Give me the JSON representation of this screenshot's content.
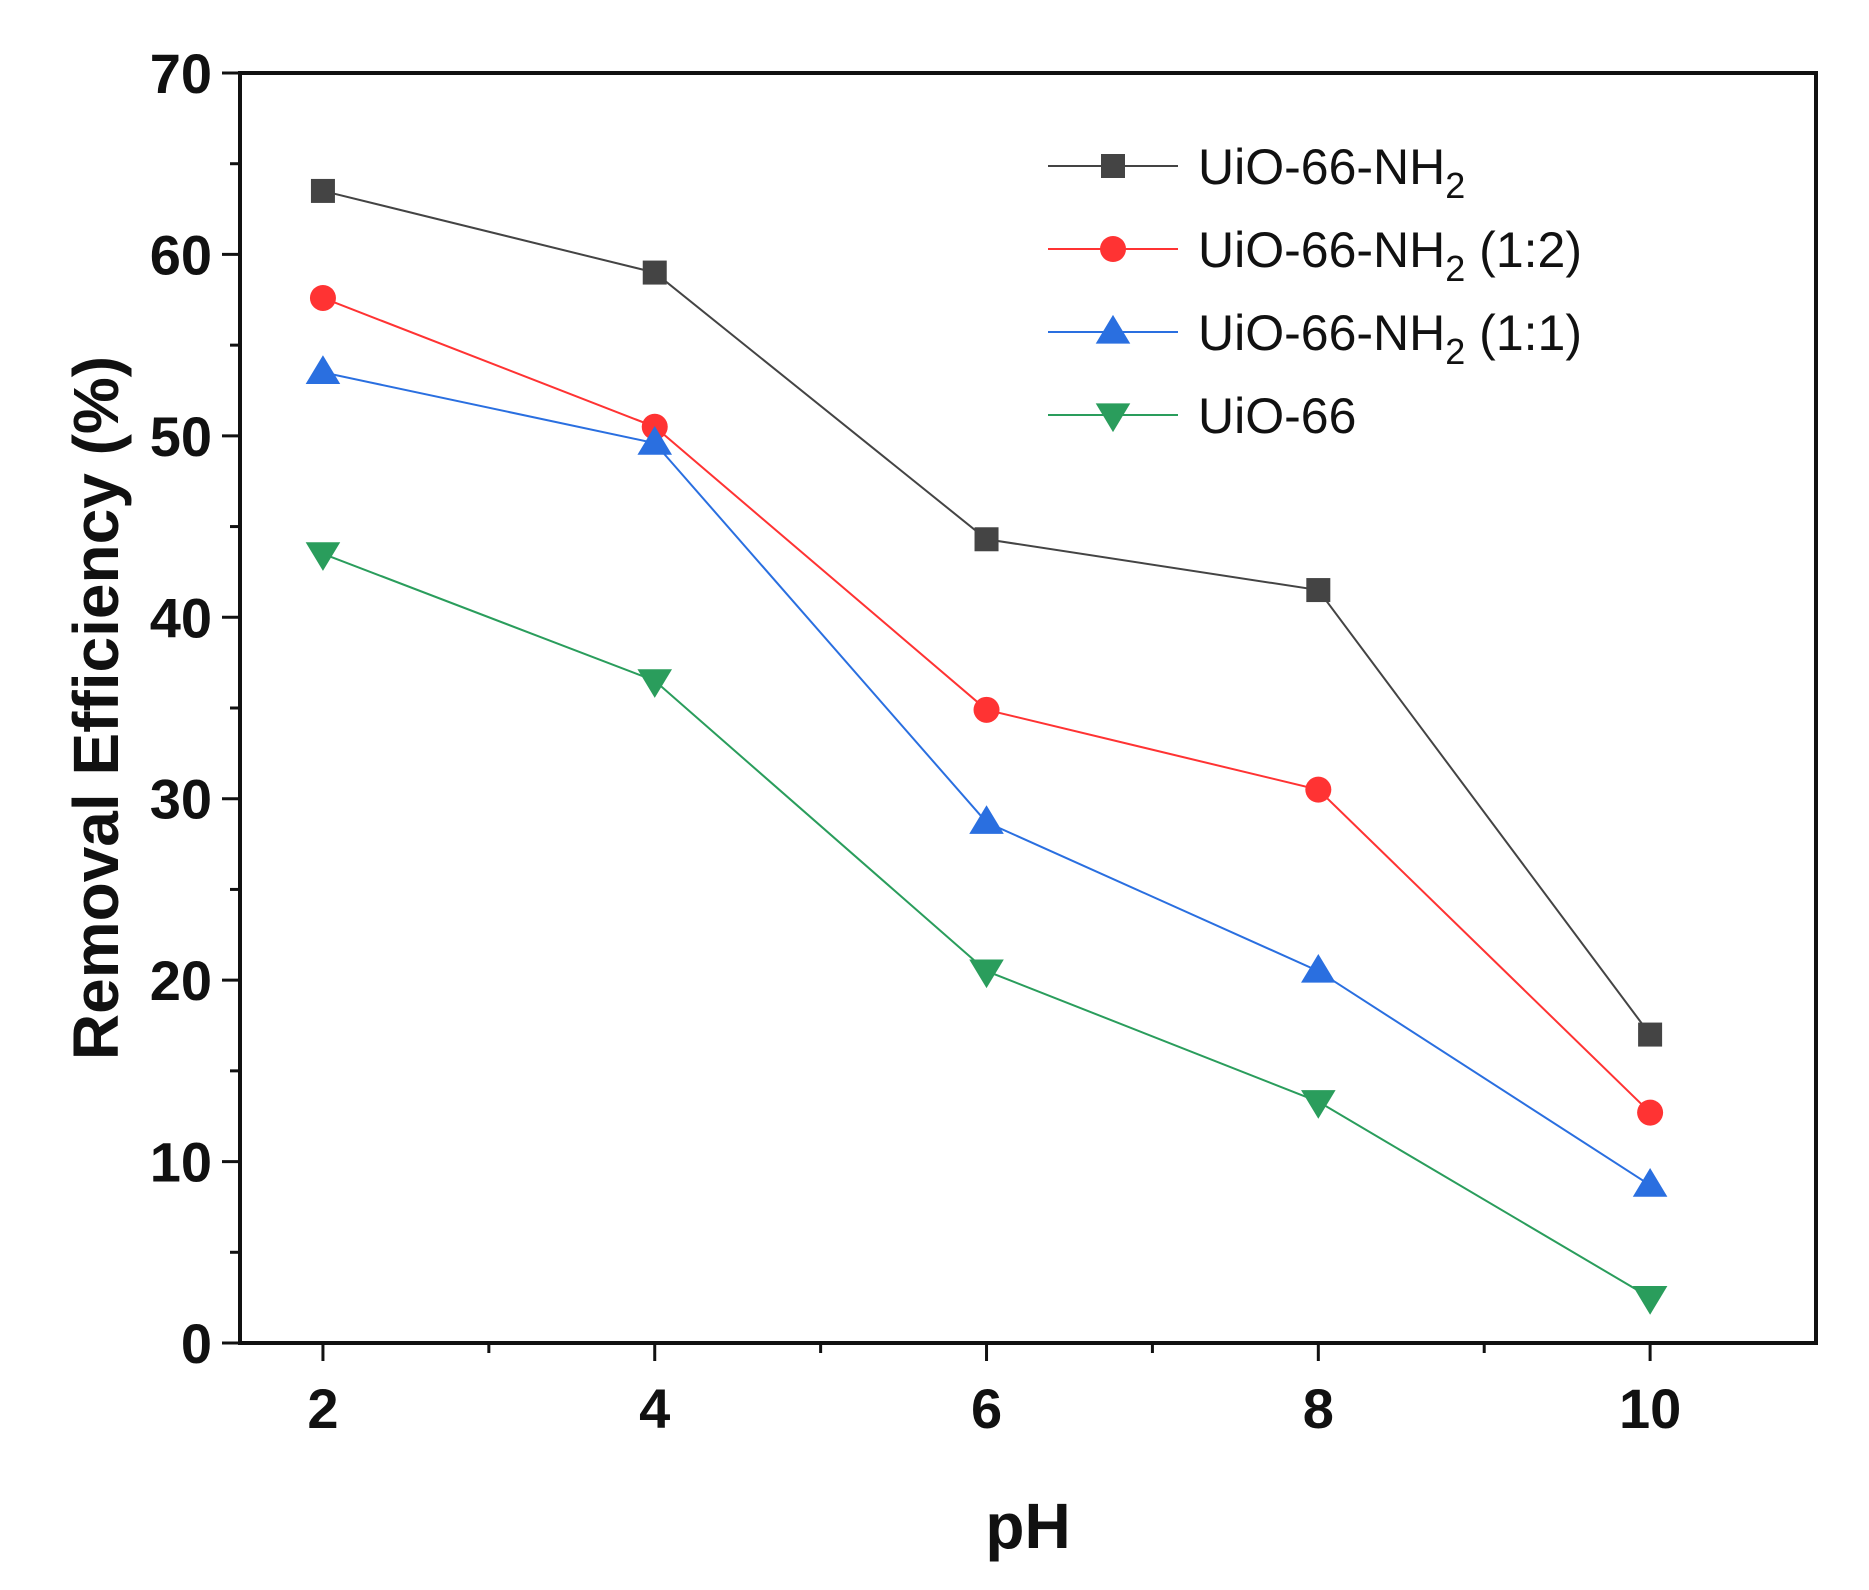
{
  "chart_data": {
    "type": "line",
    "xlabel": "pH",
    "ylabel": "Removal Efficiency (%)",
    "xlim": [
      1.5,
      11.0
    ],
    "ylim": [
      0,
      70
    ],
    "x": [
      2,
      4,
      6,
      8,
      10
    ],
    "x_ticks": [
      "2",
      "4",
      "6",
      "8",
      "10"
    ],
    "y_ticks": [
      "0",
      "10",
      "20",
      "30",
      "40",
      "50",
      "60",
      "70"
    ],
    "legend_position": "top-right",
    "series": [
      {
        "name_main": "UiO-66-NH",
        "name_sub": "2",
        "name_suffix": "",
        "marker": "square",
        "color": "#444444",
        "values": [
          63.5,
          59.0,
          44.3,
          41.5,
          17.0
        ]
      },
      {
        "name_main": "UiO-66-NH",
        "name_sub": "2",
        "name_suffix": " (1:2)",
        "marker": "circle",
        "color": "#ff3333",
        "values": [
          57.6,
          50.5,
          34.9,
          30.5,
          12.7
        ]
      },
      {
        "name_main": "UiO-66-NH",
        "name_sub": "2",
        "name_suffix": " (1:1)",
        "marker": "triangle-up",
        "color": "#2a6fe0",
        "values": [
          53.5,
          49.6,
          28.7,
          20.5,
          8.7
        ]
      },
      {
        "name_main": "UiO-66",
        "name_sub": "",
        "name_suffix": "",
        "marker": "triangle-down",
        "color": "#2a9d5c",
        "values": [
          43.5,
          36.5,
          20.5,
          13.3,
          2.5
        ]
      }
    ]
  }
}
